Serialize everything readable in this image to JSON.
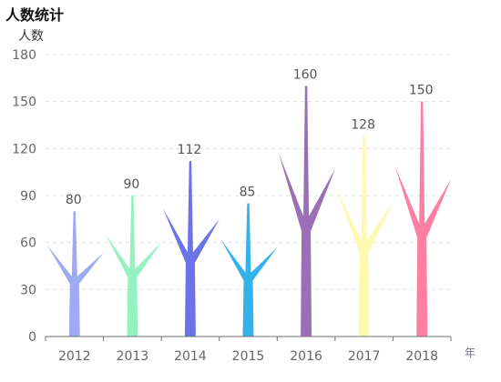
{
  "chart_data": {
    "type": "bar",
    "title": "人数统计",
    "ylabel": "人数",
    "xlabel": "年",
    "categories": [
      "2012",
      "2013",
      "2014",
      "2015",
      "2016",
      "2017",
      "2018"
    ],
    "values": [
      80,
      90,
      112,
      85,
      160,
      128,
      150
    ],
    "ylim": [
      0,
      180
    ],
    "yticks": [
      0,
      30,
      60,
      90,
      120,
      150,
      180
    ],
    "grid": true,
    "bar_style": "tree-branch pictorial",
    "colors": [
      "#9eaaf1",
      "#96f1c0",
      "#6b73e6",
      "#36b2ea",
      "#9b6fb6",
      "#fff8b0",
      "#ff7fa2"
    ]
  }
}
